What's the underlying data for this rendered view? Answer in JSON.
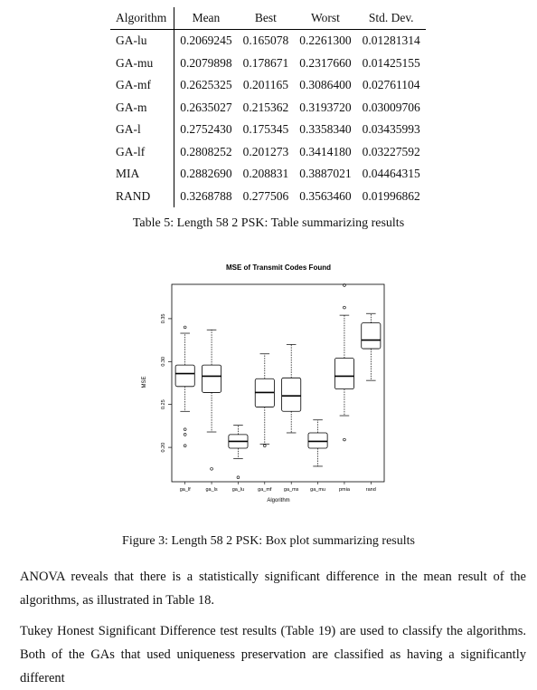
{
  "table": {
    "headers": [
      "Algorithm",
      "Mean",
      "Best",
      "Worst",
      "Std. Dev."
    ],
    "rows": [
      [
        "GA-lu",
        "0.2069245",
        "0.165078",
        "0.2261300",
        "0.01281314"
      ],
      [
        "GA-mu",
        "0.2079898",
        "0.178671",
        "0.2317660",
        "0.01425155"
      ],
      [
        "GA-mf",
        "0.2625325",
        "0.201165",
        "0.3086400",
        "0.02761104"
      ],
      [
        "GA-m",
        "0.2635027",
        "0.215362",
        "0.3193720",
        "0.03009706"
      ],
      [
        "GA-l",
        "0.2752430",
        "0.175345",
        "0.3358340",
        "0.03435993"
      ],
      [
        "GA-lf",
        "0.2808252",
        "0.201273",
        "0.3414180",
        "0.03227592"
      ],
      [
        "MIA",
        "0.2882690",
        "0.208831",
        "0.3887021",
        "0.04464315"
      ],
      [
        "RAND",
        "0.3268788",
        "0.277506",
        "0.3563460",
        "0.01996862"
      ]
    ],
    "caption": "Table 5: Length 58 2 PSK: Table summarizing results"
  },
  "chart_data": {
    "type": "boxplot",
    "title": "MSE of Transmit Codes Found",
    "xlabel": "Algorithm",
    "ylabel": "MSE",
    "ylim": [
      0.16,
      0.39
    ],
    "yticks": [
      "0.20",
      "0.25",
      "0.30",
      "0.35"
    ],
    "categories": [
      "ga_lf",
      "ga_ls",
      "ga_lu",
      "ga_mf",
      "ga_ms",
      "ga_mu",
      "pmia",
      "rand"
    ],
    "boxes": [
      {
        "name": "ga_lf",
        "min": 0.242,
        "q1": 0.271,
        "median": 0.286,
        "q3": 0.296,
        "max": 0.333,
        "outliers": [
          0.34,
          0.221,
          0.215,
          0.202
        ]
      },
      {
        "name": "ga_ls",
        "min": 0.218,
        "q1": 0.264,
        "median": 0.283,
        "q3": 0.296,
        "max": 0.337,
        "outliers": [
          0.175
        ]
      },
      {
        "name": "ga_lu",
        "min": 0.187,
        "q1": 0.199,
        "median": 0.207,
        "q3": 0.215,
        "max": 0.226,
        "outliers": [
          0.165
        ]
      },
      {
        "name": "ga_mf",
        "min": 0.204,
        "q1": 0.247,
        "median": 0.264,
        "q3": 0.28,
        "max": 0.309,
        "outliers": [
          0.202
        ]
      },
      {
        "name": "ga_ms",
        "min": 0.217,
        "q1": 0.242,
        "median": 0.26,
        "q3": 0.281,
        "max": 0.32,
        "outliers": []
      },
      {
        "name": "ga_mu",
        "min": 0.178,
        "q1": 0.199,
        "median": 0.207,
        "q3": 0.217,
        "max": 0.232,
        "outliers": []
      },
      {
        "name": "pmia",
        "min": 0.237,
        "q1": 0.268,
        "median": 0.283,
        "q3": 0.304,
        "max": 0.354,
        "outliers": [
          0.389,
          0.363,
          0.209
        ]
      },
      {
        "name": "rand",
        "min": 0.278,
        "q1": 0.315,
        "median": 0.325,
        "q3": 0.345,
        "max": 0.356,
        "outliers": []
      }
    ]
  },
  "figure_caption": "Figure 3: Length 58 2 PSK: Box plot summarizing results",
  "paragraphs": [
    "ANOVA reveals that there is a statistically significant difference in the mean result of the algorithms, as illustrated in Table 18.",
    "Tukey Honest Significant Difference test results (Table 19) are used to classify the algorithms. Both of the GAs that used uniqueness preservation are classified as having a significantly different"
  ]
}
